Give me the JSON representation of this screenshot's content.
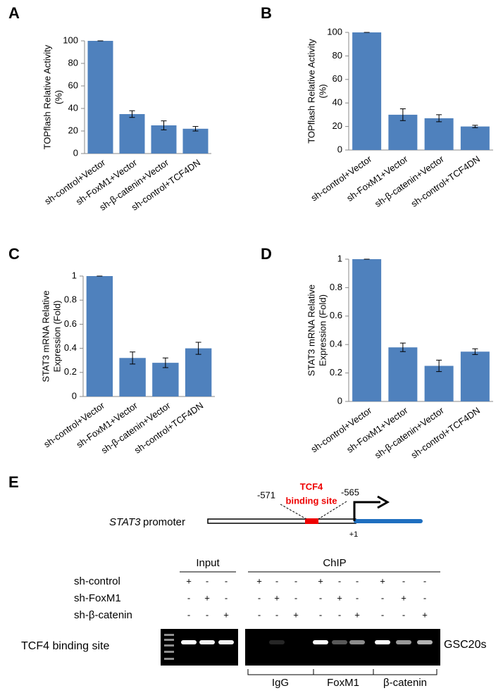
{
  "chart_data": [
    {
      "type": "bar",
      "label": "A",
      "ylabel": [
        "TOPflash Relative Activity",
        "(%)"
      ],
      "categories": [
        "sh-control+Vector",
        "sh-FoxM1+Vector",
        "sh-β-catenin+Vector",
        "sh-control+TCF4DN"
      ],
      "values": [
        100,
        35,
        25,
        22
      ],
      "errors": [
        0,
        3,
        4,
        2
      ],
      "color": "#4f81bd",
      "ylim": [
        0,
        100
      ],
      "yticks": [
        0,
        20,
        40,
        60,
        80,
        100
      ]
    },
    {
      "type": "bar",
      "label": "B",
      "ylabel": [
        "TOPflash  Relative  Activity",
        "(%)"
      ],
      "categories": [
        "sh-control+Vector",
        "sh-FoxM1+Vector",
        "sh-β-catenin+Vector",
        "sh-control+TCF4DN"
      ],
      "values": [
        100,
        30,
        27,
        20
      ],
      "errors": [
        0,
        5,
        3,
        1
      ],
      "color": "#4f81bd",
      "ylim": [
        0,
        100
      ],
      "yticks": [
        0,
        20,
        40,
        60,
        80,
        100
      ]
    },
    {
      "type": "bar",
      "label": "C",
      "ylabel": [
        "STAT3 mRNA Relative",
        "Expression (Fold)"
      ],
      "categories": [
        "sh-control+Vector",
        "sh-FoxM1+Vector",
        "sh-β-catenin+Vector",
        "sh-control+TCF4DN"
      ],
      "values": [
        1,
        0.32,
        0.28,
        0.4
      ],
      "errors": [
        0,
        0.05,
        0.04,
        0.05
      ],
      "color": "#4f81bd",
      "ylim": [
        0,
        1
      ],
      "yticks": [
        0,
        0.2,
        0.4,
        0.6,
        0.8,
        1
      ]
    },
    {
      "type": "bar",
      "label": "D",
      "ylabel": [
        "STAT3 mRNA Relative",
        "Expression (Fold)"
      ],
      "categories": [
        "sh-control+Vector",
        "sh-FoxM1+Vector",
        "sh-β-catenin+Vector",
        "sh-control+TCF4DN"
      ],
      "values": [
        1,
        0.38,
        0.25,
        0.35
      ],
      "errors": [
        0,
        0.03,
        0.04,
        0.02
      ],
      "color": "#4f81bd",
      "ylim": [
        0,
        1
      ],
      "yticks": [
        0,
        0.2,
        0.4,
        0.6,
        0.8,
        1
      ]
    }
  ],
  "panel_e": {
    "label": "E",
    "gene": "STAT3",
    "promoter": "promoter",
    "positions": [
      "-571",
      "-565",
      "+1"
    ],
    "site": [
      "TCF4",
      "binding site"
    ],
    "groups": [
      "Input",
      "ChIP"
    ],
    "rows": [
      {
        "name": "sh-control",
        "signs": [
          "+",
          "-",
          "-",
          "+",
          "-",
          "-",
          "+",
          "-",
          "-",
          "+",
          "-",
          "-"
        ]
      },
      {
        "name": "sh-FoxM1",
        "signs": [
          "-",
          "+",
          "-",
          "-",
          "+",
          "-",
          "-",
          "+",
          "-",
          "-",
          "+",
          "-"
        ]
      },
      {
        "name": "sh-β-catenin",
        "signs": [
          "-",
          "-",
          "+",
          "-",
          "-",
          "+",
          "-",
          "-",
          "+",
          "-",
          "-",
          "+"
        ]
      }
    ],
    "band_label": "TCF4 binding site",
    "cell_line": "GSC20s",
    "chip_groups": [
      "IgG",
      "FoxM1",
      "β-catenin"
    ]
  }
}
